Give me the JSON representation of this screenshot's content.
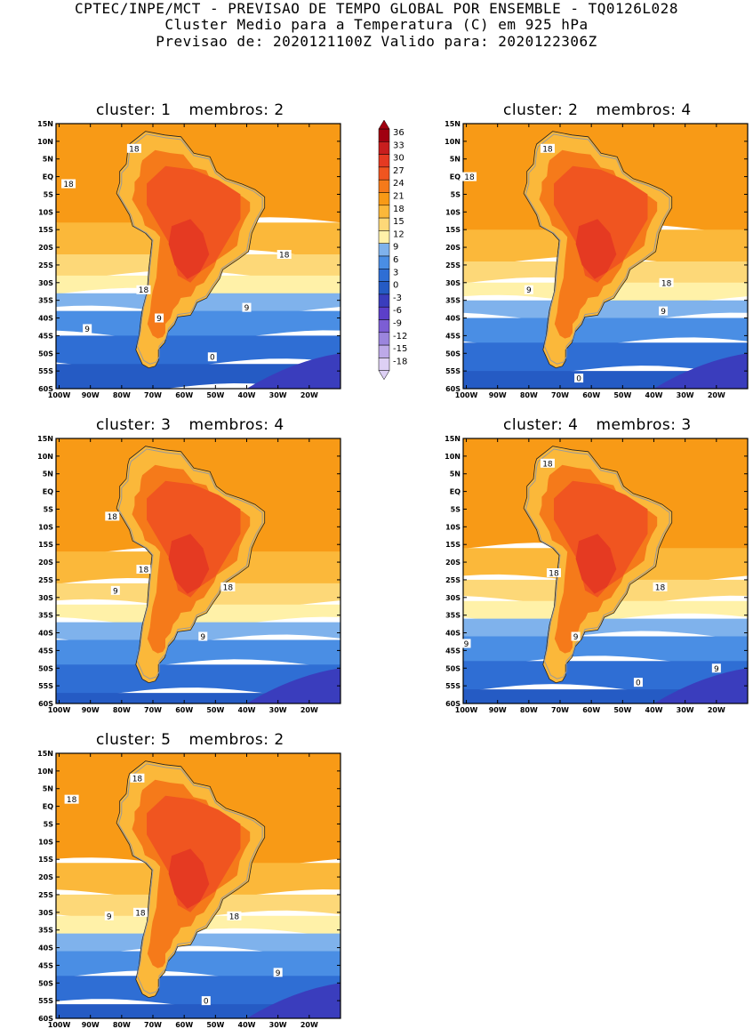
{
  "header": {
    "line1": "CPTEC/INPE/MCT - PREVISAO DE TEMPO GLOBAL POR ENSEMBLE - TQ0126L028",
    "line2": "Cluster Medio para a Temperatura (C) em 925 hPa",
    "line3": "Previsao de: 2020121100Z   Valido para: 2020122306Z"
  },
  "latitude_labels": [
    "15N",
    "10N",
    "5N",
    "EQ",
    "5S",
    "10S",
    "15S",
    "20S",
    "25S",
    "30S",
    "35S",
    "40S",
    "45S",
    "50S",
    "55S",
    "60S"
  ],
  "longitude_labels": [
    "100W",
    "90W",
    "80W",
    "70W",
    "60W",
    "50W",
    "40W",
    "30W",
    "20W"
  ],
  "colorbar": {
    "labels": [
      "36",
      "33",
      "30",
      "27",
      "24",
      "21",
      "18",
      "15",
      "12",
      "9",
      "6",
      "3",
      "0",
      "-3",
      "-6",
      "-9",
      "-12",
      "-15",
      "-18"
    ],
    "colors": [
      "#a00010",
      "#c81e1e",
      "#e53a22",
      "#f05520",
      "#f57a1a",
      "#f89a16",
      "#fbb83a",
      "#fdd878",
      "#fff1a8",
      "#7fb2ec",
      "#4a8ee4",
      "#2f6ed4",
      "#255bc4",
      "#3a3dbd",
      "#5c3fc9",
      "#7c5ed4",
      "#9b85dd",
      "#bda9e8",
      "#ddd0f4"
    ]
  },
  "panels": [
    {
      "cluster_label": "cluster: 1",
      "members_label": "membros: 2",
      "contour_labels": [
        {
          "text": "18",
          "lon": -76,
          "lat": 8
        },
        {
          "text": "18",
          "lon": -97,
          "lat": -2
        },
        {
          "text": "18",
          "lon": -28,
          "lat": -22
        },
        {
          "text": "18",
          "lon": -73,
          "lat": -32
        },
        {
          "text": "9",
          "lon": -68,
          "lat": -40
        },
        {
          "text": "9",
          "lon": -40,
          "lat": -37
        },
        {
          "text": "9",
          "lon": -91,
          "lat": -43
        },
        {
          "text": "0",
          "lon": -51,
          "lat": -51
        }
      ]
    },
    {
      "cluster_label": "cluster: 2",
      "members_label": "membros: 4",
      "contour_labels": [
        {
          "text": "18",
          "lon": -74,
          "lat": 8
        },
        {
          "text": "18",
          "lon": -99,
          "lat": 0
        },
        {
          "text": "18",
          "lon": -36,
          "lat": -30
        },
        {
          "text": "9",
          "lon": -80,
          "lat": -32
        },
        {
          "text": "9",
          "lon": -37,
          "lat": -38
        },
        {
          "text": "0",
          "lon": -64,
          "lat": -57
        }
      ]
    },
    {
      "cluster_label": "cluster: 3",
      "members_label": "membros: 4",
      "contour_labels": [
        {
          "text": "18",
          "lon": -83,
          "lat": -7
        },
        {
          "text": "18",
          "lon": -73,
          "lat": -22
        },
        {
          "text": "18",
          "lon": -46,
          "lat": -27
        },
        {
          "text": "9",
          "lon": -82,
          "lat": -28
        },
        {
          "text": "9",
          "lon": -54,
          "lat": -41
        }
      ]
    },
    {
      "cluster_label": "cluster: 4",
      "members_label": "membros: 3",
      "contour_labels": [
        {
          "text": "18",
          "lon": -74,
          "lat": 8
        },
        {
          "text": "18",
          "lon": -72,
          "lat": -23
        },
        {
          "text": "18",
          "lon": -38,
          "lat": -27
        },
        {
          "text": "9",
          "lon": -65,
          "lat": -41
        },
        {
          "text": "9",
          "lon": -100,
          "lat": -43
        },
        {
          "text": "9",
          "lon": -20,
          "lat": -50
        },
        {
          "text": "0",
          "lon": -45,
          "lat": -54
        }
      ]
    },
    {
      "cluster_label": "cluster: 5",
      "members_label": "membros: 2",
      "contour_labels": [
        {
          "text": "18",
          "lon": -75,
          "lat": 8
        },
        {
          "text": "18",
          "lon": -96,
          "lat": 2
        },
        {
          "text": "18",
          "lon": -74,
          "lat": -30
        },
        {
          "text": "18",
          "lon": -44,
          "lat": -31
        },
        {
          "text": "9",
          "lon": -84,
          "lat": -31
        },
        {
          "text": "9",
          "lon": -30,
          "lat": -47
        },
        {
          "text": "0",
          "lon": -53,
          "lat": -55
        }
      ]
    }
  ]
}
